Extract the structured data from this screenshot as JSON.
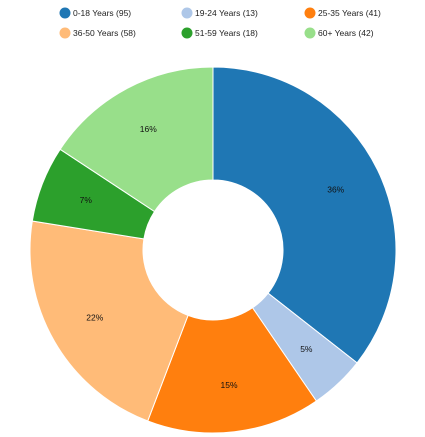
{
  "chart_data": {
    "type": "pie",
    "donut": true,
    "legend_position": "top",
    "categories": [
      {
        "label": "0-18 Years (95)",
        "value": 95,
        "percent_label": "36%",
        "color": "#1f77b4"
      },
      {
        "label": "19-24 Years (13)",
        "value": 13,
        "percent_label": "5%",
        "color": "#aec7e8"
      },
      {
        "label": "25-35 Years (41)",
        "value": 41,
        "percent_label": "15%",
        "color": "#ff7f0e"
      },
      {
        "label": "36-50 Years (58)",
        "value": 58,
        "percent_label": "22%",
        "color": "#ffbb78"
      },
      {
        "label": "51-59 Years (18)",
        "value": 18,
        "percent_label": "7%",
        "color": "#2ca02c"
      },
      {
        "label": "60+ Years (42)",
        "value": 42,
        "percent_label": "16%",
        "color": "#98df8a"
      }
    ]
  }
}
